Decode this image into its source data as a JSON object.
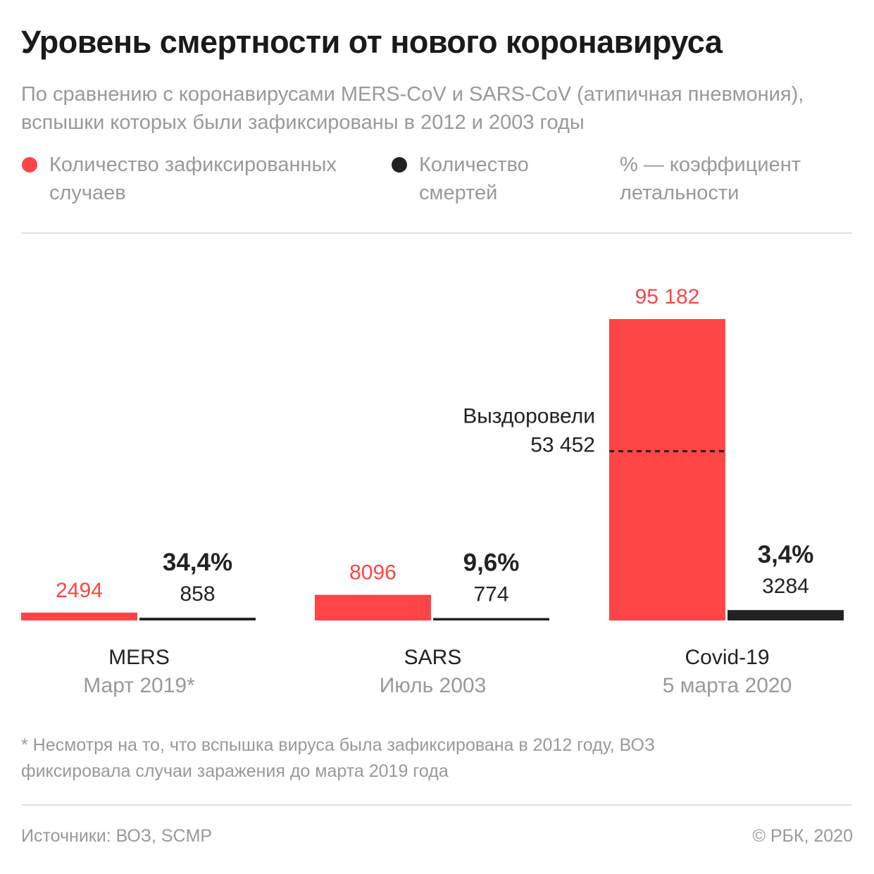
{
  "title": "Уровень смертности от нового коронавируса",
  "subtitle": "По сравнению с коронавирусами MERS-CoV и SARS-CoV (атипичная пневмония), вспышки которых были зафиксированы в 2012 и 2003 годы",
  "legend": [
    {
      "label": "Количество зафиксированных случаев",
      "color": "#ff4545"
    },
    {
      "label": "Количество смертей",
      "color": "#222222"
    },
    {
      "label": "% — коэффициент летальности"
    }
  ],
  "chart_data": {
    "type": "bar",
    "categories": [
      "MERS",
      "SARS",
      "Covid-19"
    ],
    "category_dates": [
      "Март 2019*",
      "Июль 2003",
      "5 марта 2020"
    ],
    "series": [
      {
        "name": "Количество зафиксированных случаев",
        "color": "#ff4545",
        "values": [
          2494,
          8096,
          95182
        ],
        "labels": [
          "2494",
          "8096",
          "95 182"
        ]
      },
      {
        "name": "Количество смертей",
        "color": "#222222",
        "values": [
          858,
          774,
          3284
        ],
        "labels": [
          "858",
          "774",
          "3284"
        ]
      }
    ],
    "fatality_rate": [
      "34,4%",
      "9,6%",
      "3,4%"
    ],
    "annotation": {
      "category": "Covid-19",
      "label": "Выздоровели",
      "value": 53452,
      "value_label": "53 452"
    }
  },
  "footnote": "* Несмотря на то, что вспышка вируса была зафиксирована в 2012 году, ВОЗ фиксировала случаи заражения до марта 2019 года",
  "source": "Источники: ВОЗ, SCMP",
  "copyright": "© РБК, 2020"
}
